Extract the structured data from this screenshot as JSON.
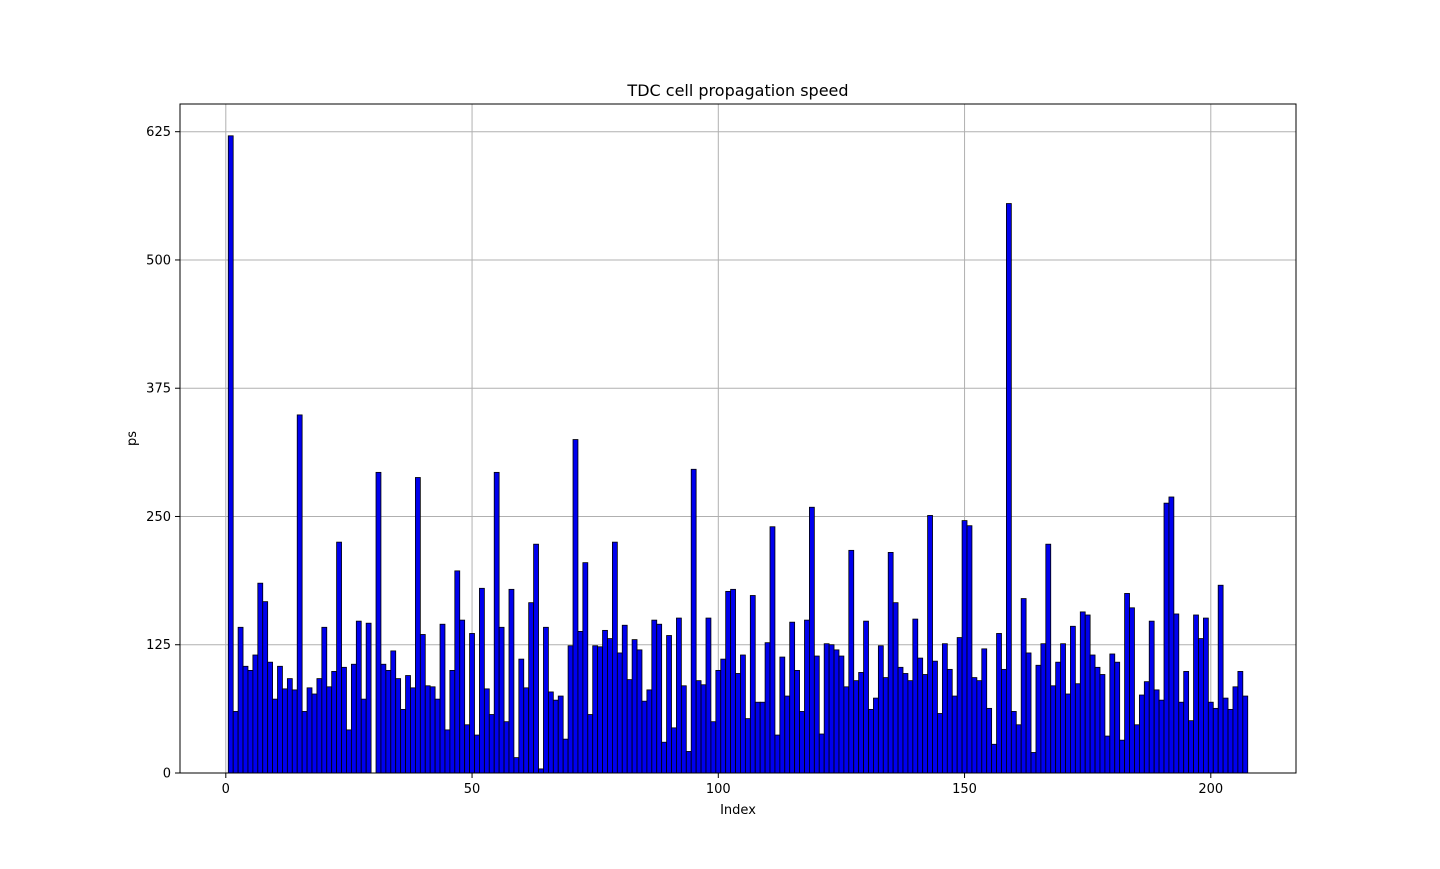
{
  "chart_data": {
    "type": "bar",
    "title": "TDC cell propagation speed",
    "xlabel": "Index",
    "ylabel": "ps",
    "xlim": [
      -9.3,
      217.3
    ],
    "ylim": [
      0,
      652
    ],
    "xticks": [
      0,
      50,
      100,
      150,
      200
    ],
    "yticks": [
      0,
      125,
      250,
      375,
      500,
      625
    ],
    "grid": true,
    "colors": {
      "bar": "#0000ee",
      "edge": "#000000",
      "grid": "#b0b0b0"
    },
    "x_start": 1,
    "values": [
      621,
      60,
      142,
      104,
      100,
      115,
      185,
      167,
      108,
      72,
      104,
      82,
      92,
      81,
      349,
      60,
      83,
      77,
      92,
      142,
      84,
      99,
      225,
      103,
      42,
      106,
      148,
      72,
      146,
      0,
      293,
      106,
      100,
      119,
      92,
      62,
      95,
      83,
      288,
      135,
      85,
      84,
      72,
      145,
      42,
      100,
      197,
      149,
      47,
      136,
      37,
      180,
      82,
      57,
      293,
      142,
      50,
      179,
      15,
      111,
      83,
      166,
      223,
      4,
      142,
      79,
      71,
      75,
      33,
      124,
      325,
      138,
      205,
      57,
      124,
      123,
      139,
      131,
      225,
      117,
      144,
      91,
      130,
      120,
      70,
      81,
      149,
      145,
      30,
      134,
      44,
      151,
      85,
      21,
      296,
      90,
      86,
      151,
      50,
      100,
      111,
      177,
      179,
      97,
      115,
      53,
      173,
      69,
      69,
      127,
      240,
      37,
      113,
      75,
      147,
      100,
      60,
      149,
      259,
      114,
      38,
      126,
      125,
      120,
      114,
      84,
      217,
      90,
      98,
      148,
      62,
      73,
      124,
      93,
      215,
      166,
      103,
      97,
      90,
      150,
      112,
      96,
      251,
      109,
      58,
      126,
      101,
      75,
      132,
      246,
      241,
      93,
      90,
      121,
      63,
      28,
      136,
      101,
      555,
      60,
      47,
      170,
      117,
      20,
      105,
      126,
      223,
      85,
      108,
      126,
      77,
      143,
      87,
      157,
      154,
      115,
      103,
      96,
      36,
      116,
      108,
      32,
      175,
      161,
      47,
      76,
      89,
      148,
      81,
      71,
      263,
      269,
      155,
      69,
      99,
      51,
      154,
      131,
      151,
      69,
      63,
      183,
      73,
      62,
      84,
      99,
      75
    ]
  }
}
